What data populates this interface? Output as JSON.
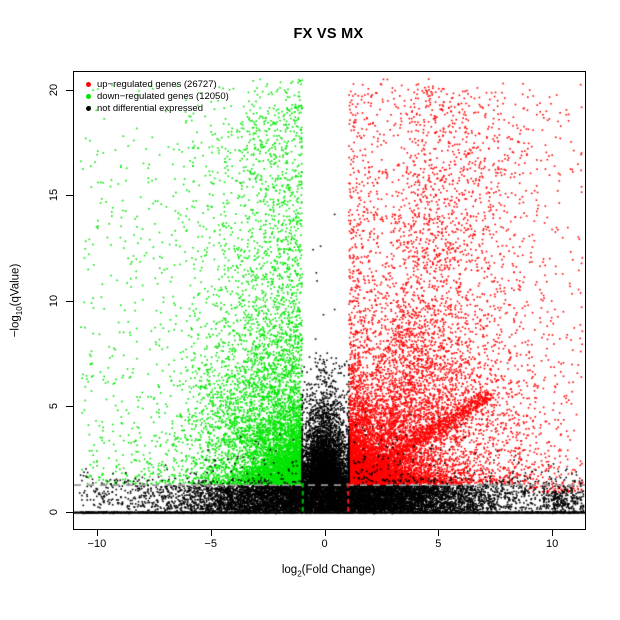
{
  "title": "FX VS MX",
  "chart_data": {
    "type": "scatter",
    "title": "FX VS MX",
    "xlabel": "log2(Fold Change)",
    "xlabel_parts": {
      "base": "log",
      "sub": "2",
      "rest": "(Fold Change)"
    },
    "ylabel": "-log10(qValue)",
    "ylabel_parts": {
      "base": "−log",
      "sub": "10",
      "rest": "(qValue)"
    },
    "xlim": [
      -11.05,
      11.4
    ],
    "ylim": [
      -0.78,
      20.88
    ],
    "xticks": [
      "−10",
      "−5",
      "0",
      "5",
      "10"
    ],
    "xtick_values": [
      -10,
      -5,
      0,
      5,
      10
    ],
    "yticks": [
      "0",
      "5",
      "10",
      "15",
      "20"
    ],
    "ytick_values": [
      0,
      5,
      10,
      15,
      20
    ],
    "grid": false,
    "legend": {
      "position": "top-left",
      "items": [
        {
          "label": "up−regulated genes (26727)",
          "color": "#ff0000",
          "count": 26727
        },
        {
          "label": "down−regulated genes (12050)",
          "color": "#00e400",
          "count": 12050
        },
        {
          "label": "not differential expressed",
          "color": "#000000"
        }
      ]
    },
    "thresholds": {
      "qvalue_line": {
        "y": 1.301,
        "style": "dashed",
        "color": "#999999"
      },
      "fc_line_down": {
        "x": -1,
        "style": "dashed",
        "color": "#00c300"
      },
      "fc_line_up": {
        "x": 1,
        "style": "dashed",
        "color": "#ff1e1e"
      },
      "baseline": {
        "y": 0,
        "style": "solid",
        "color": "#000000"
      }
    },
    "series": [
      {
        "name": "up-regulated genes",
        "color": "#ff0000",
        "region": "x > 1, -log10(qValue) > 1.301, dense wedge fanning up-right to x≈11, y≈21, with diagonal dense ridge from (1,1.5) to (7,5.6)"
      },
      {
        "name": "down-regulated genes",
        "color": "#00e400",
        "region": "x < -1, -log10(qValue) > 1.301, dense wedge -5.5..-1 at low y, sparse tail to x≈-10.5, up to y≈21"
      },
      {
        "name": "not differential expressed",
        "color": "#000000",
        "region": "central column |x|<1 up to y≈7.5, wide band 0<y<1.3 from x≈-7..8, solid point row at y=0 across full width"
      }
    ],
    "render": {
      "seed": 1337,
      "dot_size": 1.6,
      "counts": {
        "green_core": 6000,
        "green_tall": 1800,
        "green_halo": 650,
        "red_core": 7500,
        "red_tall": 2700,
        "red_ridge": 950,
        "red_halo": 850,
        "red_below": 60,
        "black_band": 9000,
        "black_column": 4500,
        "black_sparse": 950,
        "black_baseline": 1000,
        "black_right_cluster": 230,
        "black_left_scatter": 70,
        "black_right_scatter": 160,
        "black_mid_high": 8
      }
    }
  }
}
